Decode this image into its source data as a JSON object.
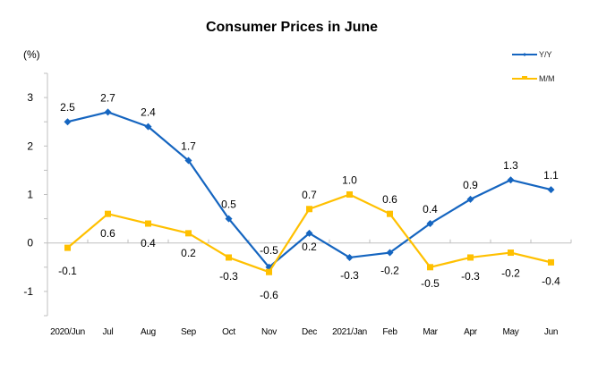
{
  "chart_data": {
    "type": "line",
    "title": "Consumer Prices in June",
    "ylabel": "(%)",
    "xlabel": "",
    "ylim": [
      -1.5,
      3.5
    ],
    "yticks": [
      3,
      2,
      1,
      0,
      -1
    ],
    "grid": false,
    "legend_position": "top-right",
    "categories": [
      "2020/Jun",
      "Jul",
      "Aug",
      "Sep",
      "Oct",
      "Nov",
      "Dec",
      "2021/Jan",
      "Feb",
      "Mar",
      "Apr",
      "May",
      "Jun"
    ],
    "series": [
      {
        "name": "Y/Y",
        "color": "#1565C0",
        "marker": "diamond",
        "values": [
          2.5,
          2.7,
          2.4,
          1.7,
          0.5,
          -0.5,
          0.2,
          -0.3,
          -0.2,
          0.4,
          0.9,
          1.3,
          1.1
        ],
        "labels": [
          "2.5",
          "2.7",
          "2.4",
          "1.7",
          "0.5",
          "-0.5",
          "0.2",
          "-0.3",
          "-0.2",
          "0.4",
          "0.9",
          "1.3",
          "1.1"
        ]
      },
      {
        "name": "M/M",
        "color": "#FFC000",
        "marker": "square",
        "values": [
          -0.1,
          0.6,
          0.4,
          0.2,
          -0.3,
          -0.6,
          0.7,
          1.0,
          0.6,
          -0.5,
          -0.3,
          -0.2,
          -0.4
        ],
        "labels": [
          "-0.1",
          "0.6",
          "0.4",
          "0.2",
          "-0.3",
          "-0.6",
          "0.7",
          "1.0",
          "0.6",
          "-0.5",
          "-0.3",
          "-0.2",
          "-0.4"
        ]
      }
    ]
  }
}
